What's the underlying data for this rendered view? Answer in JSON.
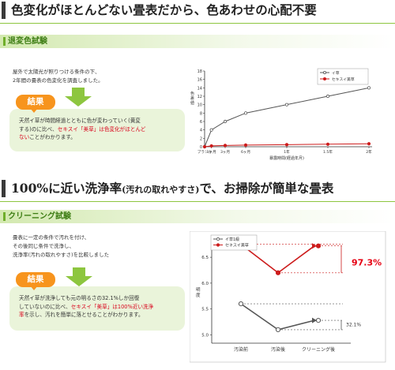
{
  "section1": {
    "heading": "色変化がほとんどない畳表だから、色あわせの心配不要",
    "subheading": "退変色試験",
    "description_lines": [
      "屋外で太陽光が照りつける条件の下、",
      "2年間の畳表の色変化を調査しました。"
    ],
    "result_label": "結果",
    "result_text": {
      "part1": "天然イ草が時間経過とともに色が変わっていく(黄変",
      "part2": "する)のに比べ、",
      "part3_red": "セキスイ「美草」は色変化がほとんど",
      "part4_red": "ない",
      "part5": "ことがわかります。"
    }
  },
  "section2": {
    "heading_main": "100%に近い洗浄率",
    "heading_paren": "(汚れの取れやすさ)",
    "heading_tail": "で、お掃除が簡単な畳表",
    "subheading": "クリーニング試験",
    "description_lines": [
      "畳表に一定の条件で汚れを付け、",
      "その後同じ条件で洗浄し、",
      "洗浄率(汚れの取れやすさ)を比較しました"
    ],
    "result_label": "結果",
    "result_text": {
      "line1": "天然イ草が洗浄しても元の明るさの32.1%しか回復",
      "line2a": "していないのに比べ、",
      "line2b_red": "セキスイ「美草」は100%近い洗浄",
      "line3a_red": "率",
      "line3b": "を示し、汚れを簡単に落とせることがわかります。"
    }
  },
  "chart_data": [
    {
      "type": "line",
      "title": "",
      "xlabel": "暴露時間(経過年月)",
      "ylabel": "色差値",
      "categories": [
        "ブランク",
        "1ヶ月",
        "3ヶ月",
        "6ヶ月",
        "1年",
        "1.5年",
        "2年"
      ],
      "x": [
        0,
        1,
        3,
        6,
        12,
        18,
        24
      ],
      "ylim": [
        0,
        18
      ],
      "yticks": [
        0,
        2,
        4,
        6,
        8,
        10,
        12,
        14,
        16,
        18
      ],
      "legend_position": "top-right",
      "grid": false,
      "series": [
        {
          "name": "イ草",
          "color": "#555555",
          "marker": "circle-open",
          "values": [
            0,
            4.0,
            6.0,
            8.0,
            10.0,
            12.0,
            14.0
          ]
        },
        {
          "name": "セキスイ美草",
          "color": "#cc1b1b",
          "marker": "circle-filled",
          "values": [
            0,
            0.2,
            0.3,
            0.4,
            0.5,
            0.6,
            0.7
          ]
        }
      ]
    },
    {
      "type": "line",
      "title": "",
      "xlabel": "",
      "ylabel": "明度",
      "categories": [
        "汚染前",
        "汚染後",
        "クリーニング後"
      ],
      "ylim": [
        4.9,
        6.7
      ],
      "yticks": [
        5.0,
        5.5,
        6.0,
        6.5
      ],
      "legend_position": "top-left",
      "grid": false,
      "series": [
        {
          "name": "イ草1級",
          "color": "#555555",
          "marker": "circle-open",
          "values": [
            5.6,
            5.1,
            5.28
          ]
        },
        {
          "name": "セキスイ美草",
          "color": "#cc1b1b",
          "marker": "circle-filled",
          "values": [
            6.75,
            6.2,
            6.72
          ]
        }
      ],
      "annotations": [
        {
          "text": "97.3%",
          "series": "セキスイ美草",
          "color": "#e60012"
        },
        {
          "text": "32.1%",
          "series": "イ草1級",
          "color": "#333333"
        }
      ]
    }
  ],
  "colors": {
    "accent_green": "#8dc63f",
    "result_orange": "#f7941d",
    "highlight_red": "#d9001a"
  },
  "icons": [
    "down-arrow-icon"
  ]
}
